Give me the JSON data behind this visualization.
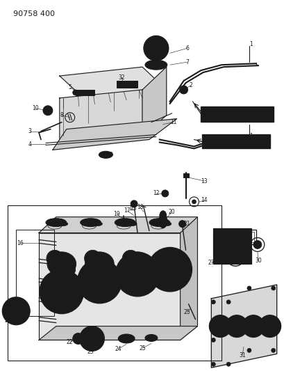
{
  "title": "90758 400",
  "bg": "#ffffff",
  "lc": "#1a1a1a",
  "fig_w": 4.1,
  "fig_h": 5.33,
  "dpi": 100
}
